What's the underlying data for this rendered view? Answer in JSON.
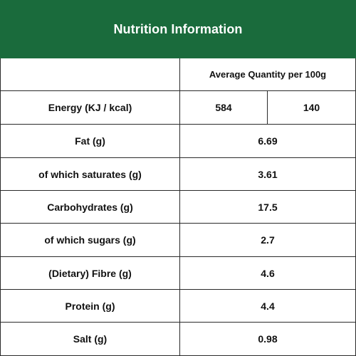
{
  "panel": {
    "title": "Nutrition Information",
    "header_bg": "#1a6b3c",
    "column_header": "Average Quantity per 100g"
  },
  "energy": {
    "label": "Energy (KJ / kcal)",
    "kj": "584",
    "kcal": "140"
  },
  "rows": [
    {
      "label": "Fat (g)",
      "value": "6.69"
    },
    {
      "label": "of which saturates (g)",
      "value": "3.61"
    },
    {
      "label": "Carbohydrates (g)",
      "value": "17.5"
    },
    {
      "label": "of which sugars (g)",
      "value": "2.7"
    },
    {
      "label": "(Dietary) Fibre (g)",
      "value": "4.6"
    },
    {
      "label": "Protein (g)",
      "value": "4.4"
    },
    {
      "label": "Salt (g)",
      "value": "0.98"
    }
  ]
}
